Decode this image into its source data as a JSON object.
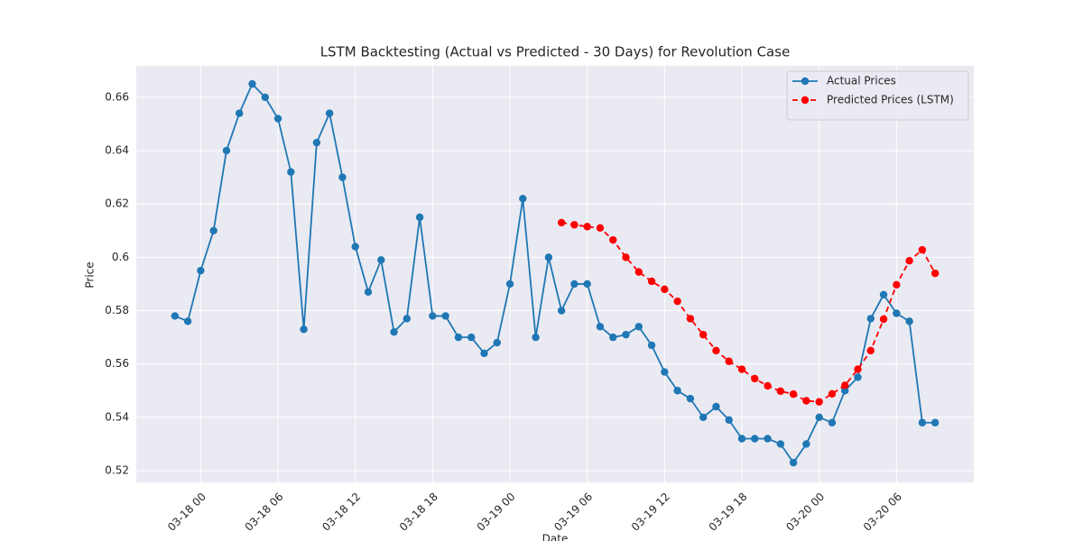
{
  "chart_data": {
    "type": "line",
    "title": "LSTM Backtesting (Actual vs Predicted - 30 Days) for Revolution Case",
    "x_label": "Date",
    "y_label": "Price",
    "x": [
      "03-17 22",
      "03-17 23",
      "03-18 00",
      "03-18 01",
      "03-18 02",
      "03-18 03",
      "03-18 04",
      "03-18 05",
      "03-18 06",
      "03-18 07",
      "03-18 08",
      "03-18 09",
      "03-18 10",
      "03-18 11",
      "03-18 12",
      "03-18 13",
      "03-18 14",
      "03-18 15",
      "03-18 16",
      "03-18 17",
      "03-18 18",
      "03-18 19",
      "03-18 20",
      "03-18 21",
      "03-18 22",
      "03-18 23",
      "03-19 00",
      "03-19 01",
      "03-19 02",
      "03-19 03",
      "03-19 04",
      "03-19 05",
      "03-19 06",
      "03-19 07",
      "03-19 08",
      "03-19 09",
      "03-19 10",
      "03-19 11",
      "03-19 12",
      "03-19 13",
      "03-19 14",
      "03-19 15",
      "03-19 16",
      "03-19 17",
      "03-19 18",
      "03-19 19",
      "03-19 20",
      "03-19 21",
      "03-19 22",
      "03-19 23",
      "03-20 00",
      "03-20 01",
      "03-20 02",
      "03-20 03",
      "03-20 04",
      "03-20 05",
      "03-20 06",
      "03-20 07",
      "03-20 08",
      "03-20 09"
    ],
    "series": [
      {
        "name": "Actual Prices",
        "color": "#1f77b4",
        "linestyle": "solid",
        "values": [
          0.578,
          0.576,
          0.595,
          0.61,
          0.64,
          0.654,
          0.665,
          0.66,
          0.652,
          0.632,
          0.573,
          0.643,
          0.654,
          0.63,
          0.604,
          0.587,
          0.599,
          0.572,
          0.577,
          0.615,
          0.578,
          0.578,
          0.57,
          0.57,
          0.564,
          0.568,
          0.59,
          0.622,
          0.57,
          0.6,
          0.58,
          0.59,
          0.59,
          0.574,
          0.57,
          0.571,
          0.574,
          0.567,
          0.557,
          0.55,
          0.547,
          0.54,
          0.544,
          0.539,
          0.532,
          0.532,
          0.532,
          0.53,
          0.523,
          0.53,
          0.54,
          0.538,
          0.55,
          0.555,
          0.577,
          0.586,
          0.579,
          0.576,
          0.538,
          0.538
        ]
      },
      {
        "name": "Predicted Prices (LSTM)",
        "color": "#ff0000",
        "linestyle": "dashed",
        "values": [
          null,
          null,
          null,
          null,
          null,
          null,
          null,
          null,
          null,
          null,
          null,
          null,
          null,
          null,
          null,
          null,
          null,
          null,
          null,
          null,
          null,
          null,
          null,
          null,
          null,
          null,
          null,
          null,
          null,
          null,
          0.613,
          0.6122,
          0.6115,
          0.611,
          0.6065,
          0.6,
          0.5945,
          0.591,
          0.588,
          0.5835,
          0.577,
          0.571,
          0.565,
          0.561,
          0.558,
          0.5545,
          0.5518,
          0.5498,
          0.5487,
          0.5462,
          0.5458,
          0.5488,
          0.552,
          0.558,
          0.565,
          0.5768,
          0.5897,
          0.5987,
          0.6028,
          0.594
        ]
      }
    ],
    "xlim": [
      "03-17 19",
      "03-20 12"
    ],
    "xticks": [
      "03-18 00",
      "03-18 06",
      "03-18 12",
      "03-18 18",
      "03-19 00",
      "03-19 06",
      "03-19 12",
      "03-19 18",
      "03-20 00",
      "03-20 06"
    ],
    "ylim": [
      0.5156,
      0.6718
    ],
    "yticks": [
      0.52,
      0.54,
      0.56,
      0.58,
      0.6,
      0.62,
      0.64,
      0.66
    ],
    "grid": true,
    "legend": "upper right"
  }
}
